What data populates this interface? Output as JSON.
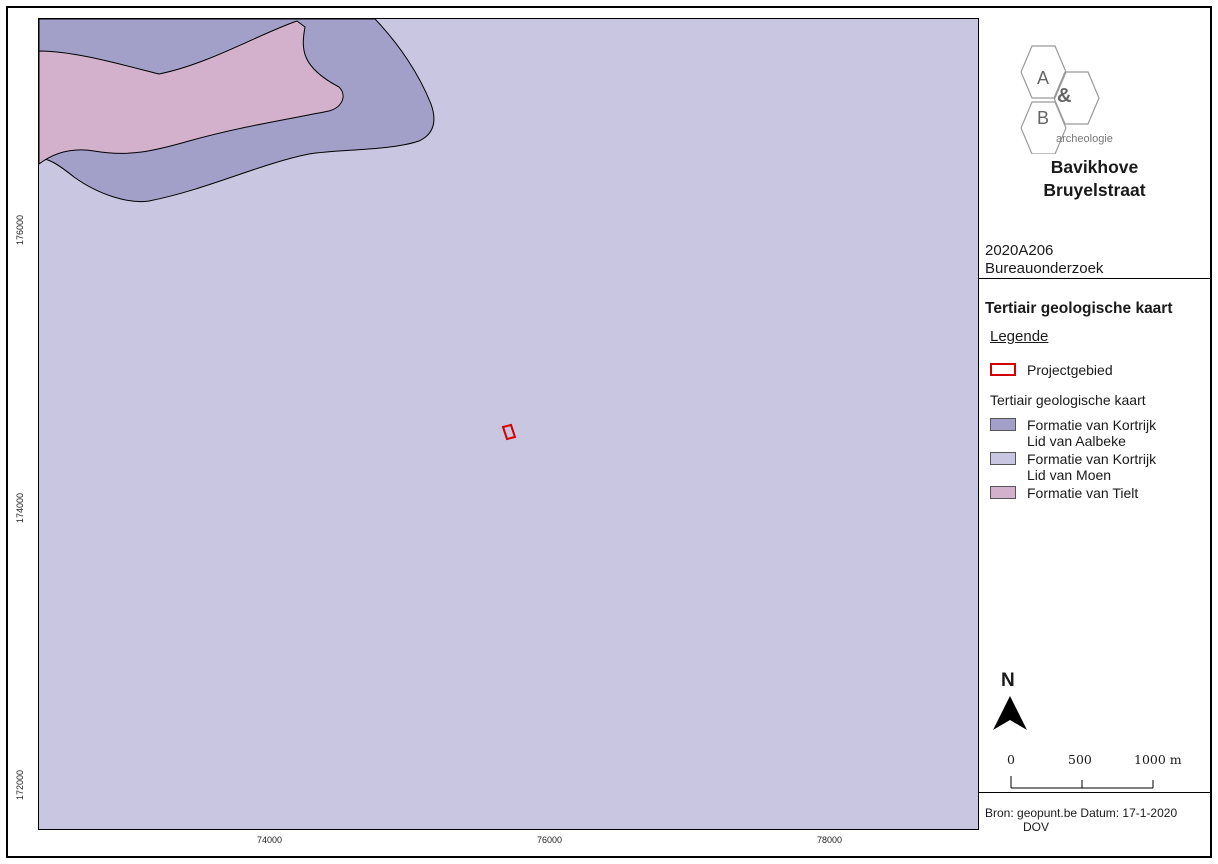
{
  "map": {
    "x_ticks": [
      "74000",
      "76000",
      "78000"
    ],
    "y_ticks": [
      "176000",
      "174000",
      "172000"
    ],
    "colors": {
      "moen": "#c8c6e0",
      "aalbeke": "#a2a0c8",
      "tielt": "#d3b1cd",
      "project_outline": "#d40000"
    }
  },
  "logo": {
    "letter_a": "A",
    "ampersand": "&",
    "letter_b": "B",
    "word": "archeologie"
  },
  "title": {
    "line1": "Bavikhove",
    "line2": "Bruyelstraat"
  },
  "project": {
    "code": "2020A206",
    "kind": "Bureauonderzoek"
  },
  "map_title": "Tertiair geologische kaart",
  "legend": {
    "heading": "Legende",
    "project_area": "Projectgebied",
    "group_title": "Tertiair geologische kaart",
    "items": [
      {
        "line1": "Formatie van Kortrijk",
        "line2": "Lid van Aalbeke",
        "color": "#a2a0c8"
      },
      {
        "line1": "Formatie van Kortrijk",
        "line2": "Lid van Moen",
        "color": "#c8c6e0"
      },
      {
        "line1": "Formatie van Tielt",
        "line2": "",
        "color": "#d3b1cd"
      }
    ]
  },
  "north": {
    "letter": "N",
    "icon": "north-arrow-icon"
  },
  "scale": {
    "labels": [
      "0",
      "500",
      "1000 m"
    ]
  },
  "source": {
    "line1": "Bron: geopunt.be  Datum: 17-1-2020",
    "line2": "DOV"
  }
}
